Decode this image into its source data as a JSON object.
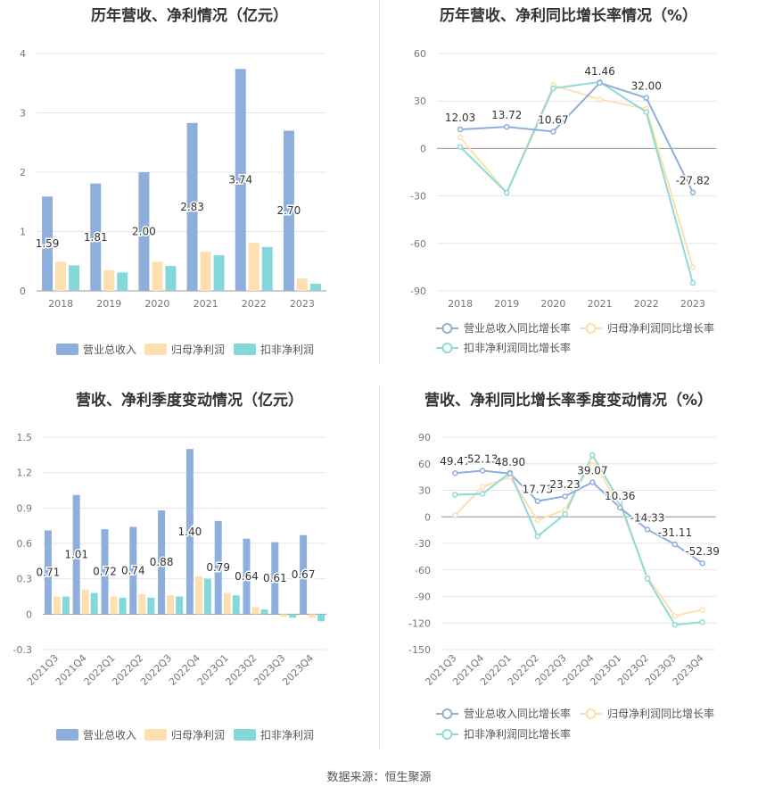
{
  "source": {
    "label": "数据来源：",
    "value": "恒生聚源"
  },
  "colors": {
    "revenue": "#8eaedb",
    "parent": "#fde0b0",
    "deducted": "#84d8da",
    "revenue_line": "#8eaedb",
    "parent_line": "#fde0b0",
    "deducted_line": "#8edad6"
  },
  "chart_data": [
    {
      "type": "bar",
      "title": "历年营收、净利情况（亿元）",
      "categories": [
        "2018",
        "2019",
        "2020",
        "2021",
        "2022",
        "2023"
      ],
      "ylim": [
        0,
        4
      ],
      "yticks": [
        0,
        1,
        2,
        3,
        4
      ],
      "series": [
        {
          "name": "营业总收入",
          "values": [
            1.59,
            1.81,
            2.0,
            2.83,
            3.74,
            2.7
          ],
          "labels": [
            "1.59",
            "1.81",
            "2.00",
            "2.83",
            "3.74",
            "2.70"
          ]
        },
        {
          "name": "归母净利润",
          "values": [
            0.49,
            0.35,
            0.49,
            0.66,
            0.81,
            0.21
          ]
        },
        {
          "name": "扣非净利润",
          "values": [
            0.43,
            0.31,
            0.42,
            0.6,
            0.74,
            0.12
          ]
        }
      ],
      "legend_position": "bottom"
    },
    {
      "type": "line",
      "title": "历年营收、净利同比增长率情况（%）",
      "categories": [
        "2018",
        "2019",
        "2020",
        "2021",
        "2022",
        "2023"
      ],
      "ylim": [
        -90,
        60
      ],
      "yticks": [
        -90,
        -60,
        -30,
        0,
        30,
        60
      ],
      "series": [
        {
          "name": "营业总收入同比增长率",
          "values": [
            12.03,
            13.72,
            10.67,
            41.46,
            32.0,
            -27.82
          ],
          "labels": [
            "12.03",
            "13.72",
            "10.67",
            "41.46",
            "32.00",
            "-27.82"
          ]
        },
        {
          "name": "归母净利润同比增长率",
          "values": [
            7.0,
            -28.0,
            40.0,
            31.0,
            25.0,
            -75.0
          ]
        },
        {
          "name": "扣非净利润同比增长率",
          "values": [
            1.0,
            -28.0,
            38.0,
            42.0,
            23.0,
            -85.0
          ]
        }
      ],
      "legend_position": "bottom"
    },
    {
      "type": "bar",
      "title": "营收、净利季度变动情况（亿元）",
      "categories": [
        "2021Q3",
        "2021Q4",
        "2022Q1",
        "2022Q2",
        "2022Q3",
        "2022Q4",
        "2023Q1",
        "2023Q2",
        "2023Q3",
        "2023Q4"
      ],
      "ylim": [
        -0.3,
        1.5
      ],
      "yticks": [
        -0.3,
        0,
        0.3,
        0.6,
        0.9,
        1.2,
        1.5
      ],
      "series": [
        {
          "name": "营业总收入",
          "values": [
            0.71,
            1.01,
            0.72,
            0.74,
            0.88,
            1.4,
            0.79,
            0.64,
            0.61,
            0.67
          ],
          "labels": [
            "0.71",
            "1.01",
            "0.72",
            "0.74",
            "0.88",
            "1.40",
            "0.79",
            "0.64",
            "0.61",
            "0.67"
          ]
        },
        {
          "name": "归母净利润",
          "values": [
            0.15,
            0.21,
            0.15,
            0.17,
            0.16,
            0.32,
            0.18,
            0.06,
            -0.02,
            -0.03
          ]
        },
        {
          "name": "扣非净利润",
          "values": [
            0.15,
            0.18,
            0.14,
            0.14,
            0.15,
            0.3,
            0.16,
            0.04,
            -0.03,
            -0.06
          ]
        }
      ],
      "legend_position": "bottom"
    },
    {
      "type": "line",
      "title": "营收、净利同比增长率季度变动情况（%）",
      "categories": [
        "2021Q3",
        "2021Q4",
        "2022Q1",
        "2022Q2",
        "2022Q3",
        "2022Q4",
        "2023Q1",
        "2023Q2",
        "2023Q3",
        "2023Q4"
      ],
      "ylim": [
        -150,
        90
      ],
      "yticks": [
        -150,
        -120,
        -90,
        -60,
        -30,
        0,
        30,
        60,
        90
      ],
      "series": [
        {
          "name": "营业总收入同比增长率",
          "values": [
            49.47,
            52.13,
            48.9,
            17.73,
            23.23,
            39.07,
            10.36,
            -14.33,
            -31.11,
            -52.39
          ],
          "labels": [
            "49.47",
            "52.13",
            "48.90",
            "17.73",
            "23.23",
            "39.07",
            "10.36",
            "-14.33",
            "-31.11",
            "-52.39"
          ]
        },
        {
          "name": "归母净利润同比增长率",
          "values": [
            2.0,
            34.0,
            45.0,
            -4.0,
            8.0,
            63.0,
            13.0,
            -68.0,
            -112.0,
            -105.0
          ]
        },
        {
          "name": "扣非净利润同比增长率",
          "values": [
            25.0,
            26.0,
            50.0,
            -22.0,
            3.0,
            70.0,
            17.0,
            -70.0,
            -122.0,
            -119.0
          ]
        }
      ],
      "legend_position": "bottom"
    }
  ]
}
